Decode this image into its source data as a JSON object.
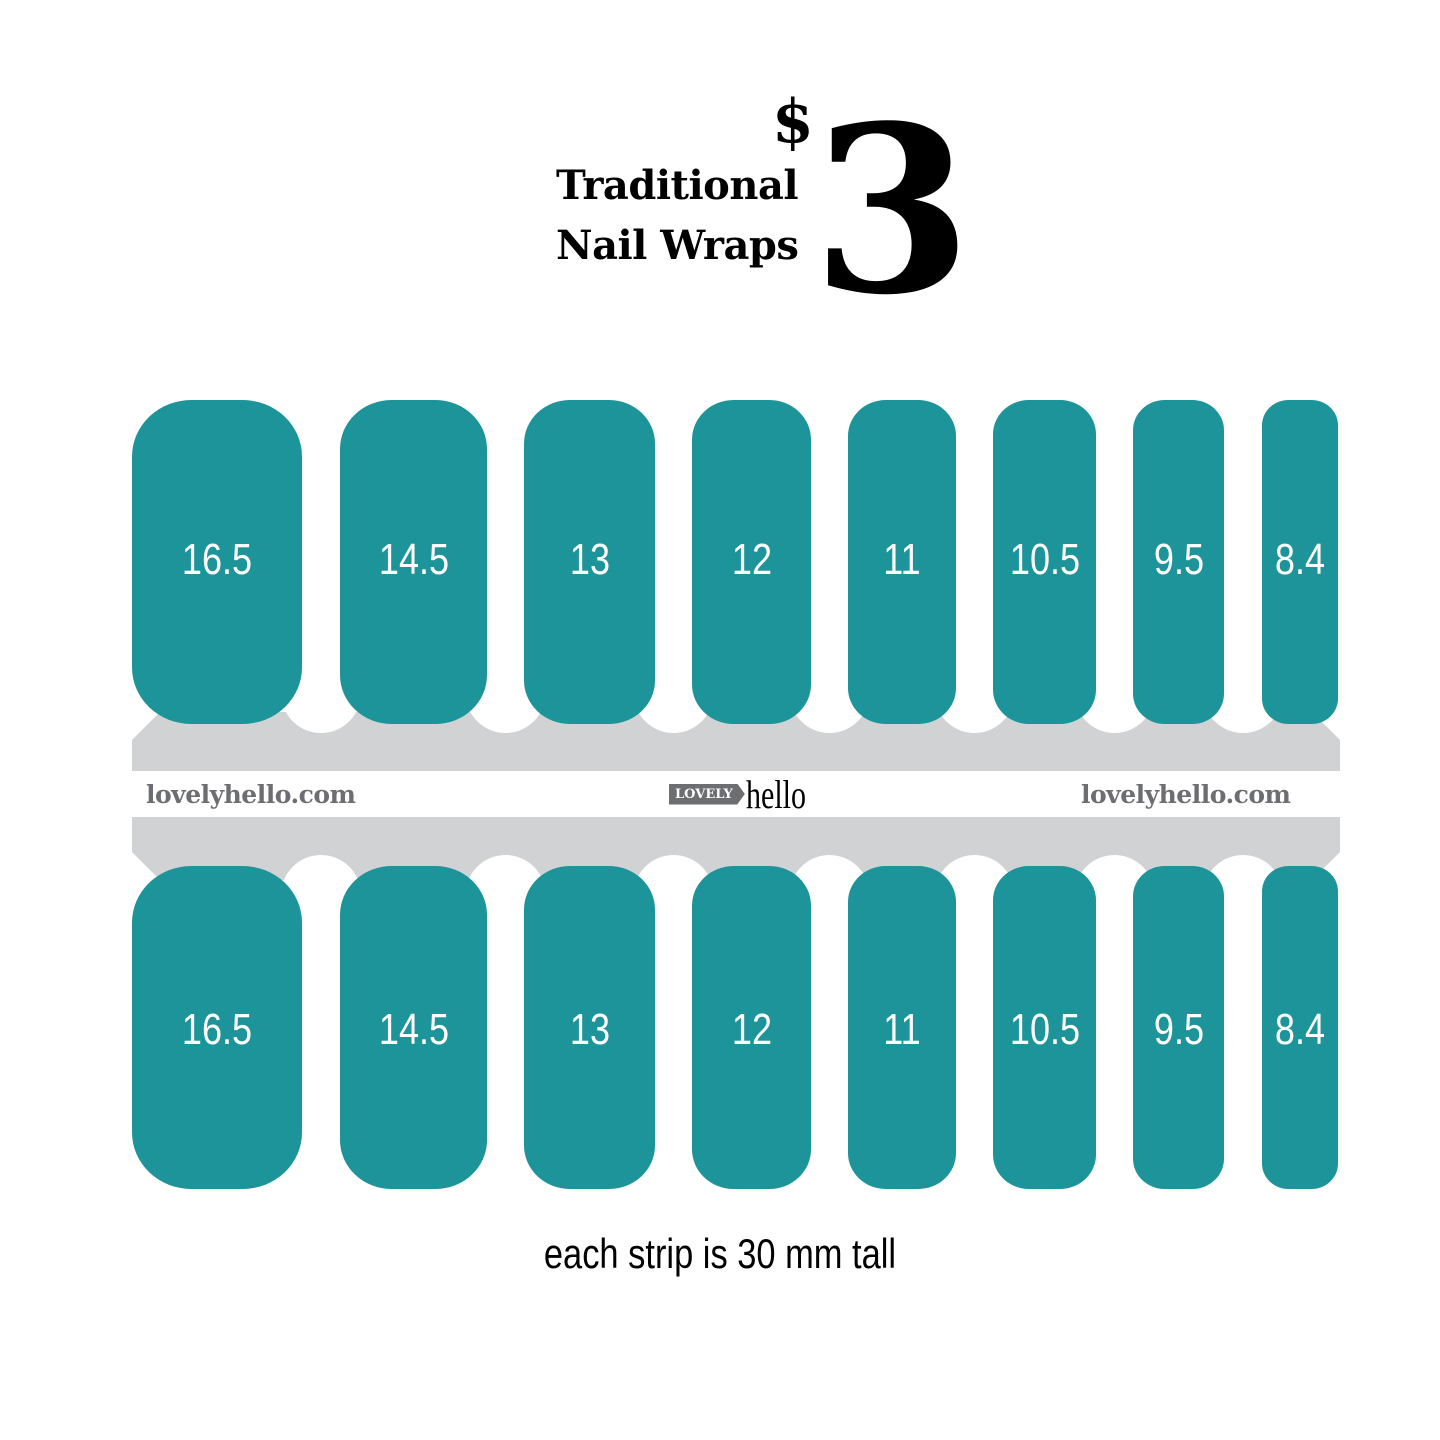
{
  "header": {
    "line1": "Traditional",
    "line2": "Nail Wraps",
    "currency": "$",
    "price": "3"
  },
  "colors": {
    "nail": "#1c949a",
    "strip": "#d0d2d4",
    "brand_text": "#6d6e71"
  },
  "top_row": [
    "16.5",
    "14.5",
    "13",
    "12",
    "11",
    "10.5",
    "9.5",
    "8.4"
  ],
  "bottom_row": [
    "16.5",
    "14.5",
    "13",
    "12",
    "11",
    "10.5",
    "9.5",
    "8.4"
  ],
  "strip": {
    "site_left": "lovelyhello.com",
    "site_right": "lovelyhello.com",
    "logo_box": "LOVELY",
    "logo_word": "hello"
  },
  "caption": "each strip is 30 mm tall"
}
